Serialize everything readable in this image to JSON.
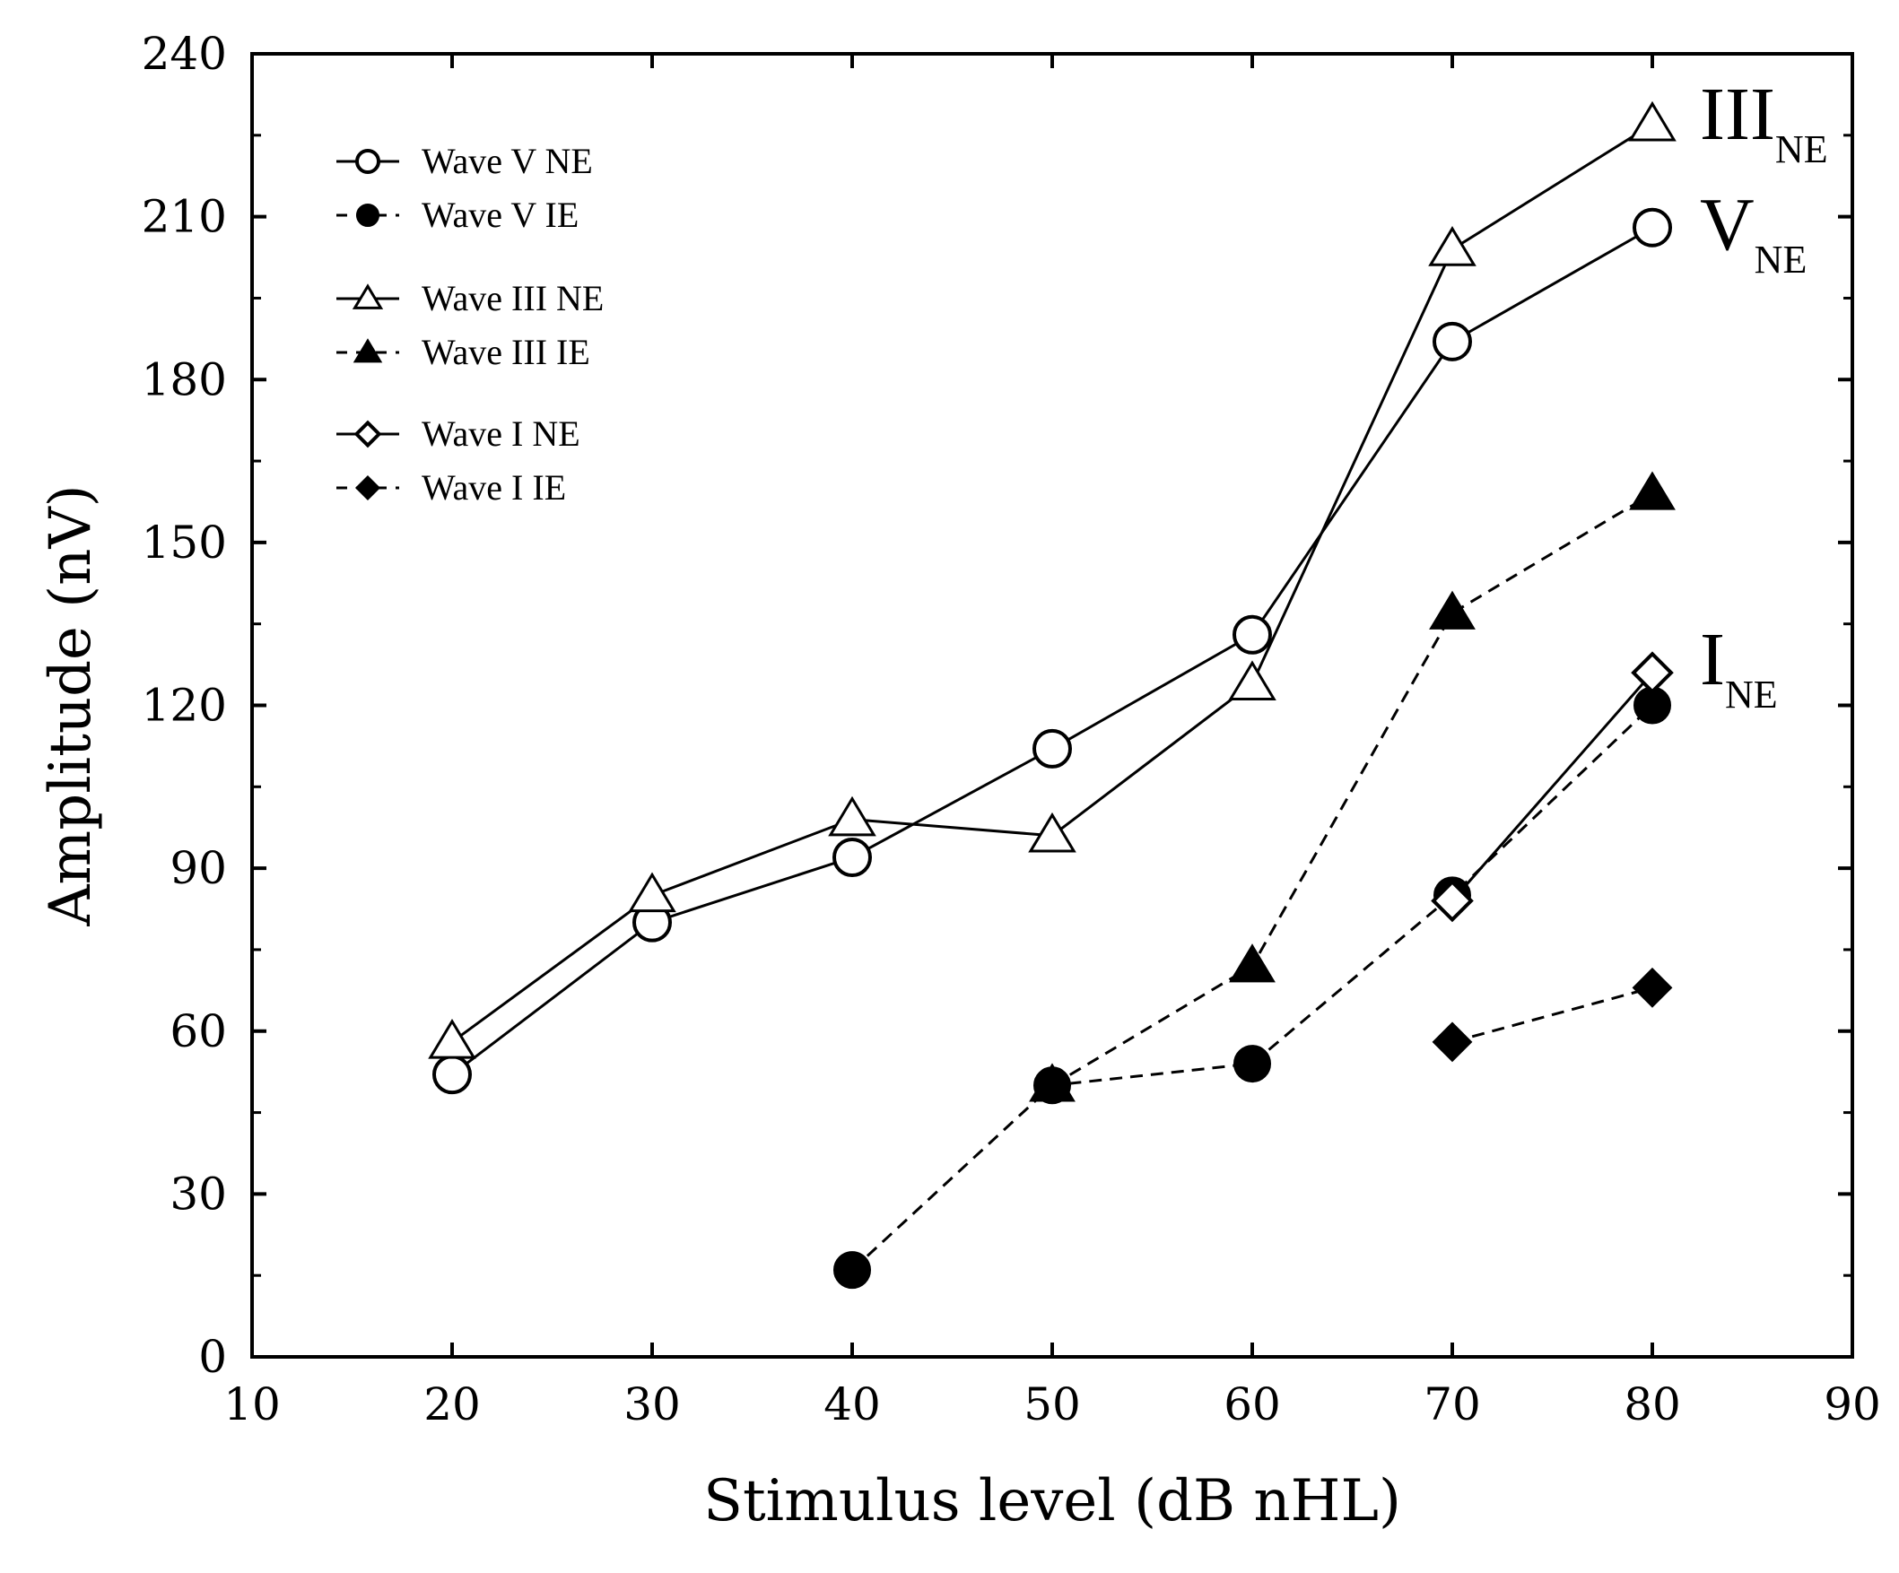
{
  "chart_data": {
    "type": "line",
    "title": "",
    "xlabel": "Stimulus level (dB nHL)",
    "ylabel": "Amplitude (nV)",
    "xlim": [
      10,
      90
    ],
    "ylim": [
      0,
      240
    ],
    "xticks": [
      10,
      20,
      30,
      40,
      50,
      60,
      70,
      80,
      90
    ],
    "yticks": [
      0,
      30,
      60,
      90,
      120,
      150,
      180,
      210,
      240
    ],
    "grid": false,
    "legend_position": "top-left",
    "series": [
      {
        "name": "Wave V NE",
        "marker": "circle",
        "filled": false,
        "dashed": false,
        "x": [
          20,
          30,
          40,
          50,
          60,
          70,
          80
        ],
        "values": [
          52,
          80,
          92,
          112,
          133,
          187,
          208
        ]
      },
      {
        "name": "Wave V IE",
        "marker": "circle",
        "filled": true,
        "dashed": true,
        "x": [
          40,
          50,
          60,
          70,
          80
        ],
        "values": [
          16,
          50,
          54,
          85,
          120
        ]
      },
      {
        "name": "Wave III NE",
        "marker": "triangle",
        "filled": false,
        "dashed": false,
        "x": [
          20,
          30,
          40,
          50,
          60,
          70,
          80
        ],
        "values": [
          58,
          85,
          99,
          96,
          124,
          204,
          227
        ]
      },
      {
        "name": "Wave III IE",
        "marker": "triangle",
        "filled": true,
        "dashed": true,
        "x": [
          50,
          60,
          70,
          80
        ],
        "values": [
          50,
          72,
          137,
          159
        ]
      },
      {
        "name": "Wave I NE",
        "marker": "diamond",
        "filled": false,
        "dashed": false,
        "x": [
          70,
          80
        ],
        "values": [
          84,
          126
        ]
      },
      {
        "name": "Wave I IE",
        "marker": "diamond",
        "filled": true,
        "dashed": true,
        "x": [
          70,
          80
        ],
        "values": [
          58,
          68
        ]
      }
    ],
    "end_labels": [
      {
        "main": "III",
        "sub": "NE"
      },
      {
        "main": "V",
        "sub": "NE"
      },
      {
        "main": "I",
        "sub": "NE"
      }
    ]
  }
}
